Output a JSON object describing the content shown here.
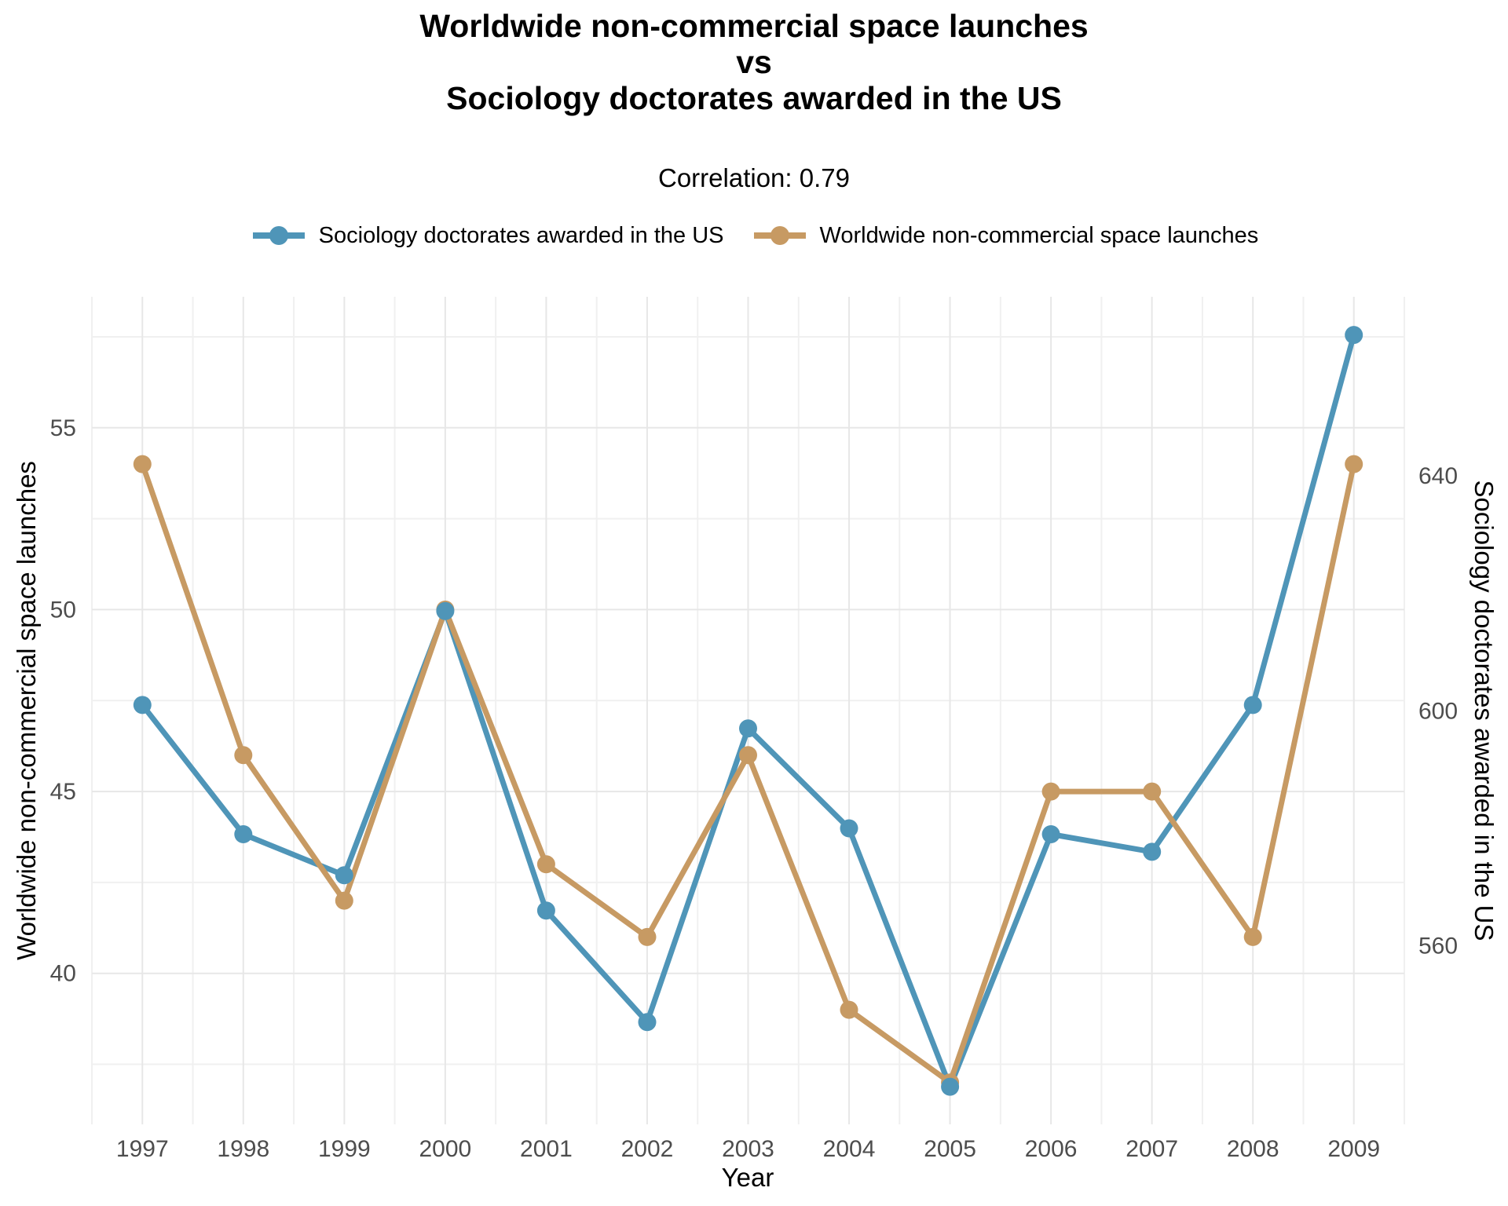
{
  "title": {
    "line1": "Worldwide non-commercial space launches",
    "line2": "vs",
    "line3": "Sociology doctorates awarded in the US"
  },
  "subtitle": "Correlation: 0.79",
  "legend": {
    "position": "top",
    "items": [
      {
        "label": "Sociology doctorates awarded in the US",
        "color": "#4F95B8"
      },
      {
        "label": "Worldwide non-commercial space launches",
        "color": "#C79A63"
      }
    ]
  },
  "chart_data": {
    "type": "line",
    "x": [
      1997,
      1998,
      1999,
      2000,
      2001,
      2002,
      2003,
      2004,
      2005,
      2006,
      2007,
      2008,
      2009
    ],
    "series": [
      {
        "name": "Sociology doctorates awarded in the US",
        "axis": "right",
        "color": "#4F95B8",
        "values": [
          601,
          579,
          572,
          617,
          566,
          547,
          597,
          580,
          536,
          579,
          576,
          601,
          664
        ]
      },
      {
        "name": "Worldwide non-commercial space launches",
        "axis": "left",
        "color": "#C79A63",
        "values": [
          54,
          46,
          42,
          50,
          43,
          41,
          46,
          39,
          37,
          45,
          45,
          41,
          54
        ]
      }
    ],
    "title": "Worldwide non-commercial space launches vs Sociology doctorates awarded in the US",
    "subtitle": "Correlation: 0.79",
    "xlabel": "Year",
    "ylabel_left": "Worldwide non-commercial space launches",
    "ylabel_right": "Sociology doctorates awarded in the US",
    "xlim": [
      1996.5,
      2009.5
    ],
    "ylim_left": [
      35.85,
      58.6
    ],
    "ylim_right": [
      529.6,
      670.5
    ],
    "yticks_left": [
      55,
      50,
      45,
      40
    ],
    "yticks_right": [
      640,
      600,
      560
    ],
    "xticks": [
      1997,
      1998,
      1999,
      2000,
      2001,
      2002,
      2003,
      2004,
      2005,
      2006,
      2007,
      2008,
      2009
    ],
    "grid": true,
    "grid_major_color": "#E7E7E7",
    "grid_minor_color": "#F0F0F0",
    "tick_label_color": "#4D4D4D",
    "legend_position": "top"
  }
}
